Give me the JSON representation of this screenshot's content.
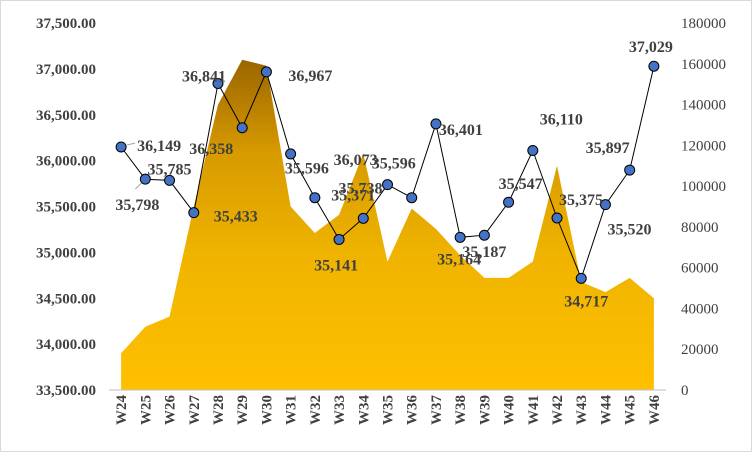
{
  "chart_data": {
    "type": "line",
    "categories": [
      "W24",
      "W25",
      "W26",
      "W27",
      "W28",
      "W29",
      "W30",
      "W31",
      "W32",
      "W33",
      "W34",
      "W35",
      "W36",
      "W37",
      "W38",
      "W39",
      "W40",
      "W41",
      "W42",
      "W43",
      "W44",
      "W45",
      "W46"
    ],
    "series": [
      {
        "type": "line",
        "axis": "left",
        "color": "#4472c4",
        "values": [
          36149,
          35798,
          35785,
          35433,
          36841,
          36358,
          36967,
          36073,
          35596,
          35141,
          35371,
          35738,
          35596,
          36401,
          35164,
          35187,
          35547,
          36110,
          35375,
          34717,
          35520,
          35897,
          37029
        ],
        "labels": [
          "36,149",
          "35,798",
          "35,785",
          "35,433",
          "36,841",
          "36,358",
          "36,967",
          "36,073",
          "35,596",
          "35,141",
          "35,371",
          "35,738",
          "35,596",
          "36,401",
          "35,164",
          "35,187",
          "35,547",
          "36,110",
          "35,375",
          "34,717",
          "35,520",
          "35,897",
          "37,029"
        ]
      },
      {
        "type": "area",
        "axis": "right",
        "color": "#ffc000",
        "color_dark": "#996300",
        "values": [
          18000,
          31000,
          36000,
          90000,
          140000,
          162000,
          159000,
          90000,
          77000,
          86000,
          116000,
          63000,
          89000,
          79000,
          66000,
          55000,
          55000,
          63000,
          110000,
          53000,
          48000,
          55000,
          45000
        ]
      }
    ],
    "y_left": {
      "min": 33500,
      "max": 37500,
      "step": 500,
      "ticks": [
        "33,500.00",
        "34,000.00",
        "34,500.00",
        "35,000.00",
        "35,500.00",
        "36,000.00",
        "36,500.00",
        "37,000.00",
        "37,500.00"
      ]
    },
    "y_right": {
      "min": 0,
      "max": 180000,
      "step": 20000,
      "ticks": [
        "0",
        "20000",
        "40000",
        "60000",
        "80000",
        "100000",
        "120000",
        "140000",
        "160000",
        "180000"
      ]
    },
    "grid": false,
    "legend": "none",
    "title": "",
    "xlabel": "",
    "ylabel": ""
  }
}
